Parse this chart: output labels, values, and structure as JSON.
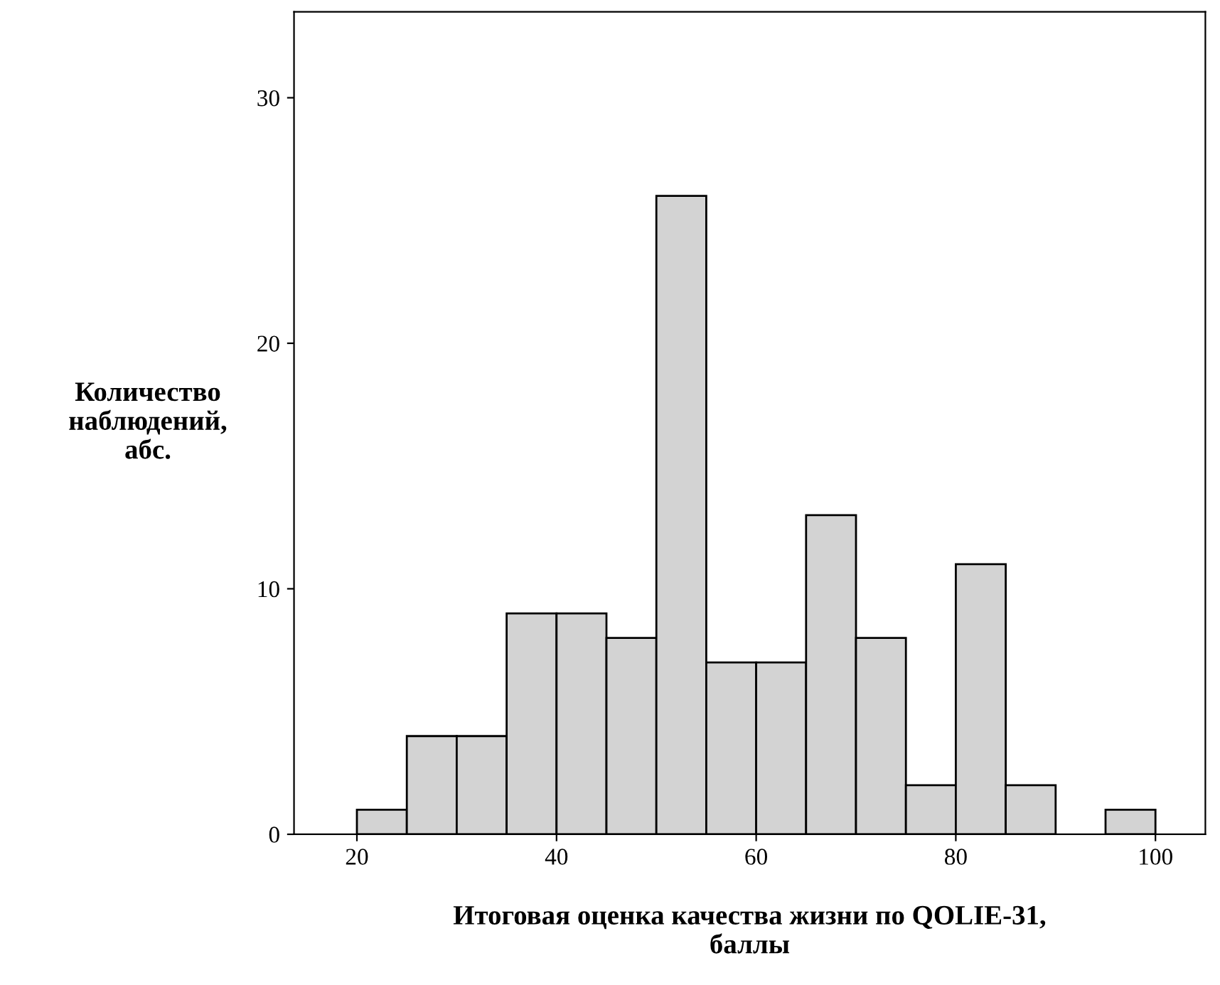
{
  "chart_data": {
    "type": "histogram",
    "xlabel": "Итоговая оценка качества жизни по QOLIE-31,\nбаллы",
    "ylabel": "Количество\nнаблюдений,\nабс.",
    "bins": [
      20,
      25,
      30,
      35,
      40,
      45,
      50,
      55,
      60,
      65,
      70,
      75,
      80,
      85,
      90,
      95,
      100
    ],
    "values": [
      1,
      4,
      4,
      9,
      9,
      8,
      26,
      7,
      7,
      13,
      8,
      2,
      11,
      2,
      0,
      1
    ],
    "color": "#d3d3d3",
    "xlim": [
      13.7,
      105
    ],
    "xticks": [
      20,
      40,
      60,
      80,
      100
    ],
    "ylim": [
      0,
      33.5
    ],
    "yticks": [
      0,
      10,
      20,
      30
    ],
    "grid": false
  }
}
